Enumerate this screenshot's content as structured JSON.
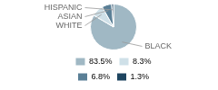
{
  "chart_data": {
    "type": "pie",
    "categories": [
      "BLACK",
      "WHITE",
      "ASIAN",
      "HISPANIC"
    ],
    "values": [
      83.5,
      8.3,
      6.8,
      1.3
    ],
    "value_labels": [
      "83.5%",
      "8.3%",
      "6.8%",
      "1.3%"
    ],
    "colors": [
      "#a0b8c4",
      "#cfe0e8",
      "#5a7f96",
      "#1e4560"
    ],
    "legend": "bottom"
  }
}
